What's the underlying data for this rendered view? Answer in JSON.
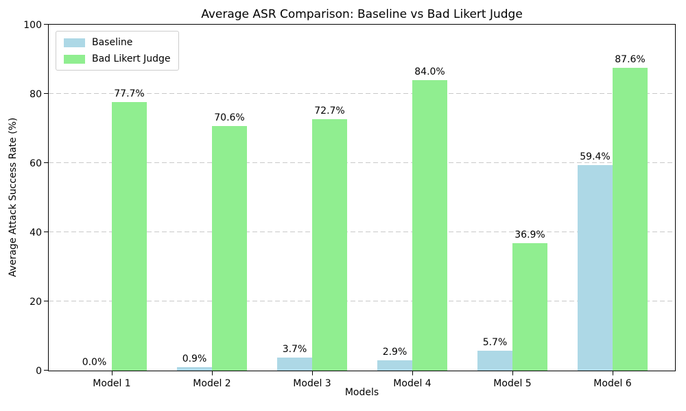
{
  "chart_data": {
    "type": "bar",
    "title": "Average ASR Comparison: Baseline vs Bad Likert Judge",
    "xlabel": "Models",
    "ylabel": "Average Attack Success Rate (%)",
    "categories": [
      "Model 1",
      "Model 2",
      "Model 3",
      "Model 4",
      "Model 5",
      "Model 6"
    ],
    "series": [
      {
        "name": "Baseline",
        "color": "#ADD8E6",
        "values": [
          0.0,
          0.9,
          3.7,
          2.9,
          5.7,
          59.4
        ],
        "labels": [
          "0.0%",
          "0.9%",
          "3.7%",
          "2.9%",
          "5.7%",
          "59.4%"
        ]
      },
      {
        "name": "Bad Likert Judge",
        "color": "#90EE90",
        "values": [
          77.7,
          70.6,
          72.7,
          84.0,
          36.9,
          87.6
        ],
        "labels": [
          "77.7%",
          "70.6%",
          "72.7%",
          "84.0%",
          "36.9%",
          "87.6%"
        ]
      }
    ],
    "ylim": [
      0,
      100
    ],
    "yticks": [
      0,
      20,
      40,
      60,
      80,
      100
    ],
    "grid": "horizontal-dashed",
    "legend_position": "upper-left",
    "background": "#ffffff"
  }
}
